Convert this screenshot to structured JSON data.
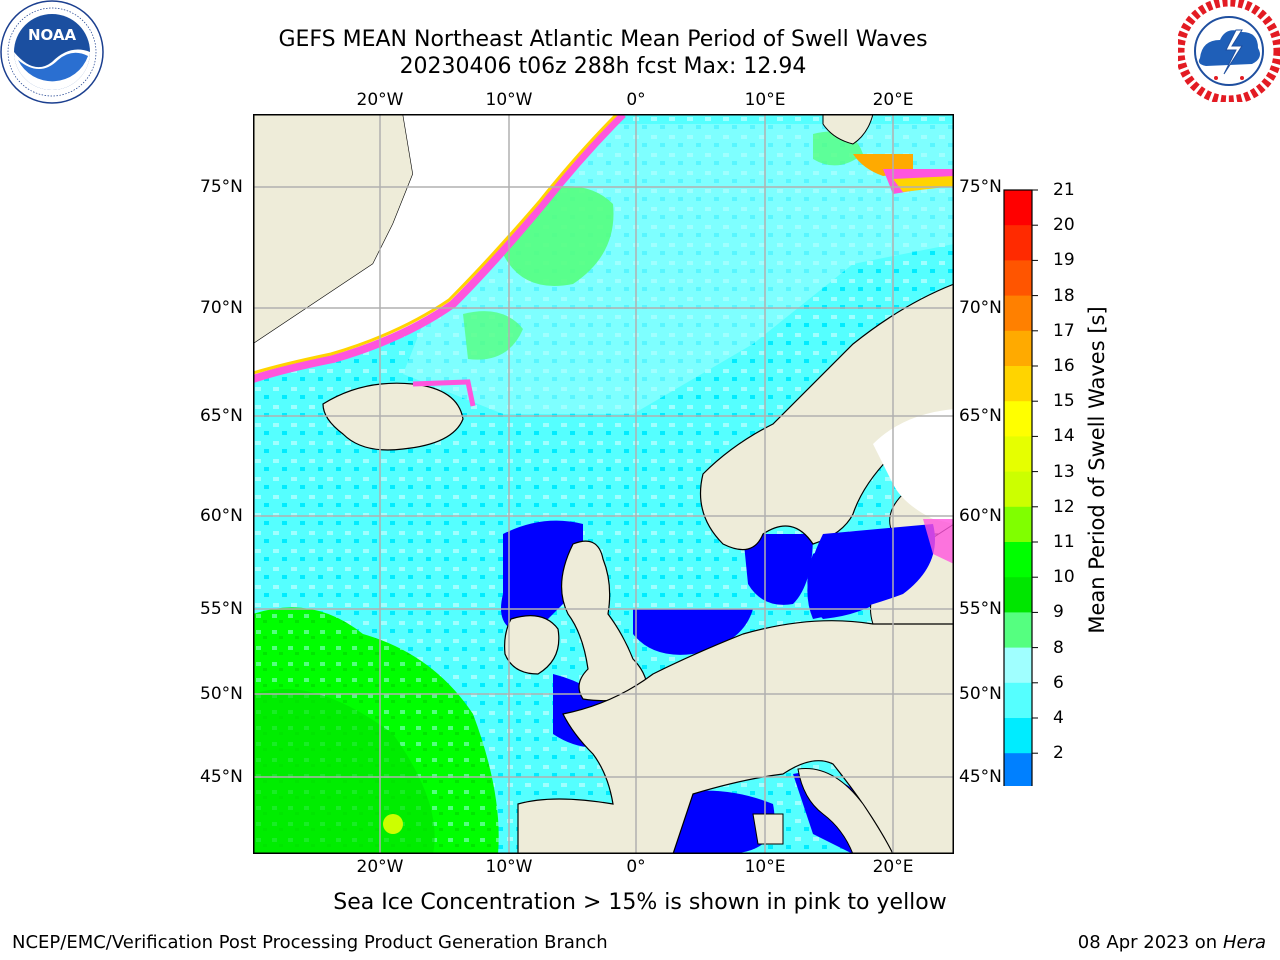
{
  "header": {
    "title_line1": "GEFS MEAN Northeast Atlantic Mean Period of Swell Waves",
    "title_line2": "20230406 t06z 288h fcst   Max: 12.94"
  },
  "logos": {
    "left": {
      "name": "NOAA",
      "ring_text": "NATIONAL OCEANIC AND ATMOSPHERIC ADMINISTRATION",
      "bottom_text": "U.S. DEPARTMENT OF COMMERCE"
    },
    "right": {
      "ring_text": "NATIONAL WEATHER SERVICE"
    }
  },
  "map": {
    "lat_labels_left": [
      "75°N",
      "70°N",
      "65°N",
      "60°N",
      "55°N",
      "50°N",
      "45°N"
    ],
    "lat_labels_right": [
      "75°N",
      "70°N",
      "65°N",
      "60°N",
      "55°N",
      "50°N",
      "45°N"
    ],
    "lon_labels_top": [
      "20°W",
      "10°W",
      "0°",
      "10°E",
      "20°E"
    ],
    "lon_labels_bottom": [
      "20°W",
      "10°W",
      "0°",
      "10°E",
      "20°E"
    ],
    "colors": {
      "land": "#eeecd9",
      "ice": "#ffffff",
      "grid": "#b0b0b0"
    }
  },
  "colorbar": {
    "title": "Mean Period of Swell Waves [s]",
    "ticks": [
      "21",
      "20",
      "19",
      "18",
      "17",
      "16",
      "15",
      "14",
      "13",
      "12",
      "11",
      "10",
      "9",
      "8",
      "6",
      "4",
      "2"
    ],
    "colors_top_to_bottom": [
      "#ff0000",
      "#ff2a00",
      "#ff5500",
      "#ff8000",
      "#ffaa00",
      "#ffd400",
      "#ffff00",
      "#e6ff00",
      "#ccff00",
      "#80ff00",
      "#00ff00",
      "#00e600",
      "#55ff80",
      "#a0ffff",
      "#55ffff",
      "#00ecff",
      "#0080ff",
      "#0000ff"
    ]
  },
  "note": "Sea Ice Concentration > 15% is shown in pink to yellow",
  "footer": {
    "left": "NCEP/EMC/Verification Post Processing Product Generation Branch",
    "date": "08 Apr 2023 on ",
    "host": "Hera"
  }
}
